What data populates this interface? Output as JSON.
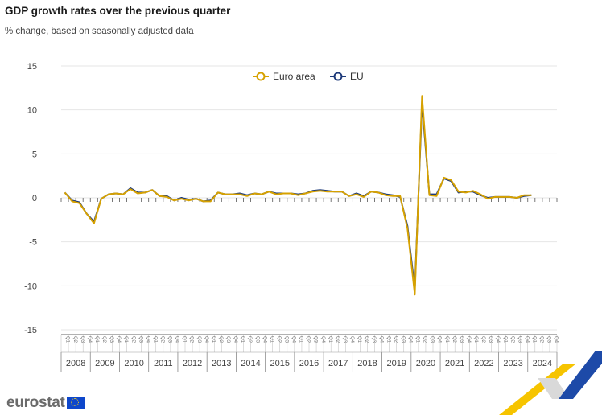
{
  "chart_data": {
    "type": "line",
    "title": "GDP growth rates over the previous quarter",
    "subtitle": "% change, based on seasonally adjusted data",
    "ylim": [
      -15,
      15
    ],
    "yticks": [
      -15,
      -10,
      -5,
      0,
      5,
      10,
      15
    ],
    "years": [
      "2008",
      "2009",
      "2010",
      "2011",
      "2012",
      "2013",
      "2014",
      "2015",
      "2016",
      "2017",
      "2018",
      "2019",
      "2020",
      "2021",
      "2022",
      "2023",
      "2024"
    ],
    "quarter_labels": [
      "Q1",
      "Q2",
      "Q3",
      "Q4"
    ],
    "legend": [
      "Euro area",
      "EU"
    ],
    "series": [
      {
        "name": "Euro area",
        "color": "#d6a100",
        "values": [
          0.6,
          -0.4,
          -0.6,
          -1.8,
          -2.9,
          -0.1,
          0.4,
          0.5,
          0.4,
          1.0,
          0.5,
          0.6,
          0.9,
          0.2,
          0.1,
          -0.3,
          -0.1,
          -0.3,
          -0.1,
          -0.4,
          -0.4,
          0.6,
          0.4,
          0.4,
          0.4,
          0.2,
          0.5,
          0.4,
          0.7,
          0.4,
          0.5,
          0.5,
          0.3,
          0.5,
          0.7,
          0.8,
          0.7,
          0.7,
          0.7,
          0.2,
          0.4,
          0.1,
          0.7,
          0.6,
          0.3,
          0.2,
          0.2,
          -3.5,
          -11.0,
          11.6,
          0.3,
          0.2,
          2.3,
          2.0,
          0.7,
          0.6,
          0.8,
          0.4,
          -0.1,
          0.1,
          0.1,
          0.1,
          0.0,
          0.3,
          0.3,
          null,
          null,
          null
        ]
      },
      {
        "name": "EU",
        "color": "#1d3a7a",
        "values": [
          0.6,
          -0.3,
          -0.5,
          -1.8,
          -2.7,
          -0.1,
          0.4,
          0.5,
          0.4,
          1.1,
          0.6,
          0.6,
          0.9,
          0.2,
          0.2,
          -0.3,
          0.0,
          -0.2,
          -0.1,
          -0.4,
          -0.3,
          0.6,
          0.4,
          0.4,
          0.5,
          0.3,
          0.5,
          0.4,
          0.7,
          0.5,
          0.5,
          0.5,
          0.4,
          0.5,
          0.8,
          0.9,
          0.8,
          0.7,
          0.7,
          0.2,
          0.5,
          0.2,
          0.7,
          0.6,
          0.4,
          0.3,
          0.1,
          -3.2,
          -10.4,
          10.8,
          0.4,
          0.4,
          2.2,
          1.9,
          0.6,
          0.7,
          0.7,
          0.3,
          0.0,
          0.1,
          0.1,
          0.1,
          0.0,
          0.2,
          0.3,
          null,
          null,
          null
        ]
      }
    ]
  }
}
